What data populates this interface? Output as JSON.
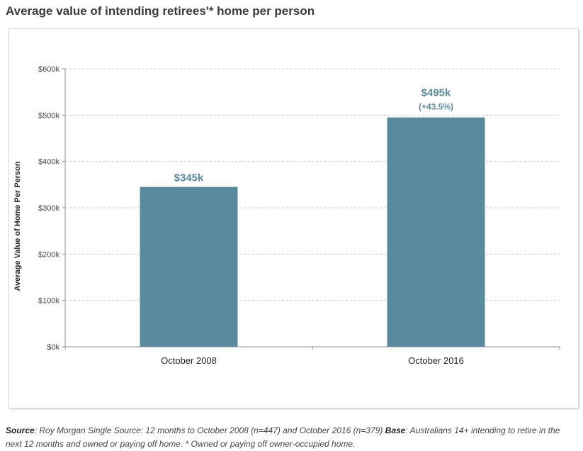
{
  "title": "Average value of intending retirees'* home per person",
  "chart_data": {
    "type": "bar",
    "categories": [
      "October 2008",
      "October 2016"
    ],
    "values": [
      345,
      495
    ],
    "data_labels": [
      "$345k",
      "$495k"
    ],
    "data_sublabels": [
      "",
      "(+43.5%)"
    ],
    "ylabel": "Average Value of Home Per Person",
    "xlabel": "",
    "ylim": [
      0,
      600
    ],
    "yticks": [
      0,
      100,
      200,
      300,
      400,
      500,
      600
    ],
    "ytick_labels": [
      "$0k",
      "$100k",
      "$200k",
      "$300k",
      "$400k",
      "$500k",
      "$600k"
    ],
    "grid": true,
    "bar_color": "#5a8a9e",
    "label_color": "#5a8a9e"
  },
  "footnote": {
    "source_label": "Source",
    "source_text": ": Roy Morgan Single Source: 12 months to October 2008 (n=447) and October 2016 (n=379) ",
    "base_label": "Base",
    "base_text": ": Australians 14+ intending to retire in the next 12 months and owned or paying off home. * Owned or paying off owner-occupied home."
  }
}
